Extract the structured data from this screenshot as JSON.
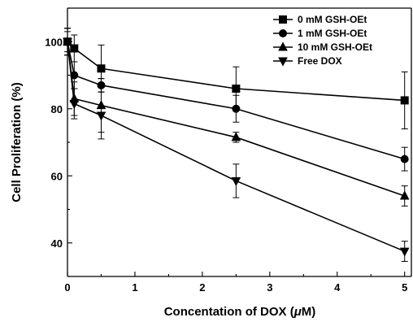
{
  "chart_data": {
    "type": "line",
    "title": "",
    "xlabel": "Concentation of  DOX (",
    "xlabel_unit": "μ",
    "xlabel_suffix": "M)",
    "ylabel": "Cell Proliferation (%)",
    "xlim": [
      0,
      5.1
    ],
    "ylim": [
      30,
      110
    ],
    "xticks": [
      0,
      1,
      2,
      3,
      4,
      5
    ],
    "yticks": [
      40,
      60,
      80,
      100
    ],
    "legend_position": "top-right",
    "x": [
      0,
      0.1,
      0.5,
      2.5,
      5
    ],
    "series": [
      {
        "name": "0 mM GSH-OEt",
        "marker": "square",
        "values": [
          100,
          98,
          92,
          86,
          82.5
        ],
        "errors": [
          3,
          4,
          7,
          6.5,
          8.5
        ]
      },
      {
        "name": "1 mM GSH-OEt",
        "marker": "circle",
        "values": [
          100,
          90,
          87,
          80,
          65
        ],
        "errors": [
          4,
          4,
          2,
          4,
          3.5
        ]
      },
      {
        "name": "10 mM GSH-OEt",
        "marker": "triangle-up",
        "values": [
          100,
          83,
          81,
          71.5,
          54
        ],
        "errors": [
          4,
          5,
          8,
          1.5,
          3
        ]
      },
      {
        "name": "Free DOX",
        "marker": "triangle-down",
        "values": [
          100,
          81.5,
          78,
          58.5,
          37.5
        ],
        "errors": [
          4,
          4.5,
          7,
          5,
          3
        ]
      }
    ]
  }
}
